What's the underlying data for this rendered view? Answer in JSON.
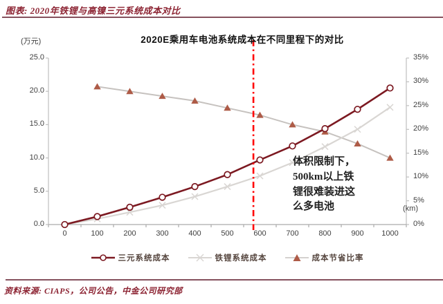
{
  "header": {
    "title": "图表: 2020年铁锂与高镍三元系统成本对比"
  },
  "chart": {
    "title": "2020E乘用车电池系统成本在不同里程下的对比",
    "left_axis_unit": "(万元)",
    "x_axis_unit": "(km)",
    "annotation": "体积限制下，\n500km以上铁\n锂很难装进这\n么多电池"
  },
  "chart_data": {
    "type": "line",
    "title": "2020E乘用车电池系统成本在不同里程下的对比",
    "categories": [
      0,
      100,
      200,
      300,
      400,
      500,
      600,
      700,
      800,
      900,
      1000
    ],
    "x_unit": "(km)",
    "left_axis": {
      "unit": "万元",
      "min": 0,
      "max": 25,
      "tick_step": 5,
      "tick_labels": [
        "0.0",
        "5.0",
        "10.0",
        "15.0",
        "20.0",
        "25.0"
      ]
    },
    "right_axis": {
      "unit": "%",
      "min": 0,
      "max": 35,
      "tick_step": 5,
      "tick_labels": [
        "0%",
        "5%",
        "10%",
        "15%",
        "20%",
        "25%",
        "30%",
        "35%"
      ]
    },
    "grid": false,
    "legend_position": "bottom",
    "series": [
      {
        "name": "三元系统成本",
        "axis": "left",
        "marker": "circle",
        "line_color": "#7C1921",
        "marker_color": "#7C1921",
        "values": [
          0.0,
          1.2,
          2.6,
          4.1,
          5.7,
          7.5,
          9.7,
          11.8,
          14.4,
          17.3,
          20.5
        ]
      },
      {
        "name": "铁锂系统成本",
        "axis": "left",
        "marker": "x",
        "line_color": "#D9D6D3",
        "marker_color": "#D9D6D3",
        "values": [
          0.0,
          0.85,
          1.85,
          2.9,
          4.2,
          5.7,
          7.3,
          9.3,
          11.7,
          14.3,
          17.6
        ]
      },
      {
        "name": "成本节省比率",
        "axis": "right",
        "marker": "triangle",
        "line_color": "#C6C2BF",
        "marker_color": "#AE5B47",
        "values": [
          null,
          29,
          28,
          27,
          26,
          24.5,
          23,
          21,
          19.5,
          17,
          14
        ]
      }
    ],
    "vline": {
      "x_km": 580,
      "color": "#FF0000",
      "style": "dash-dot"
    },
    "annotation": "体积限制下，500km以上铁锂很难装进这么多电池"
  },
  "footer": {
    "source": "资料来源: CIAPS，公司公告，中金公司研究部"
  }
}
